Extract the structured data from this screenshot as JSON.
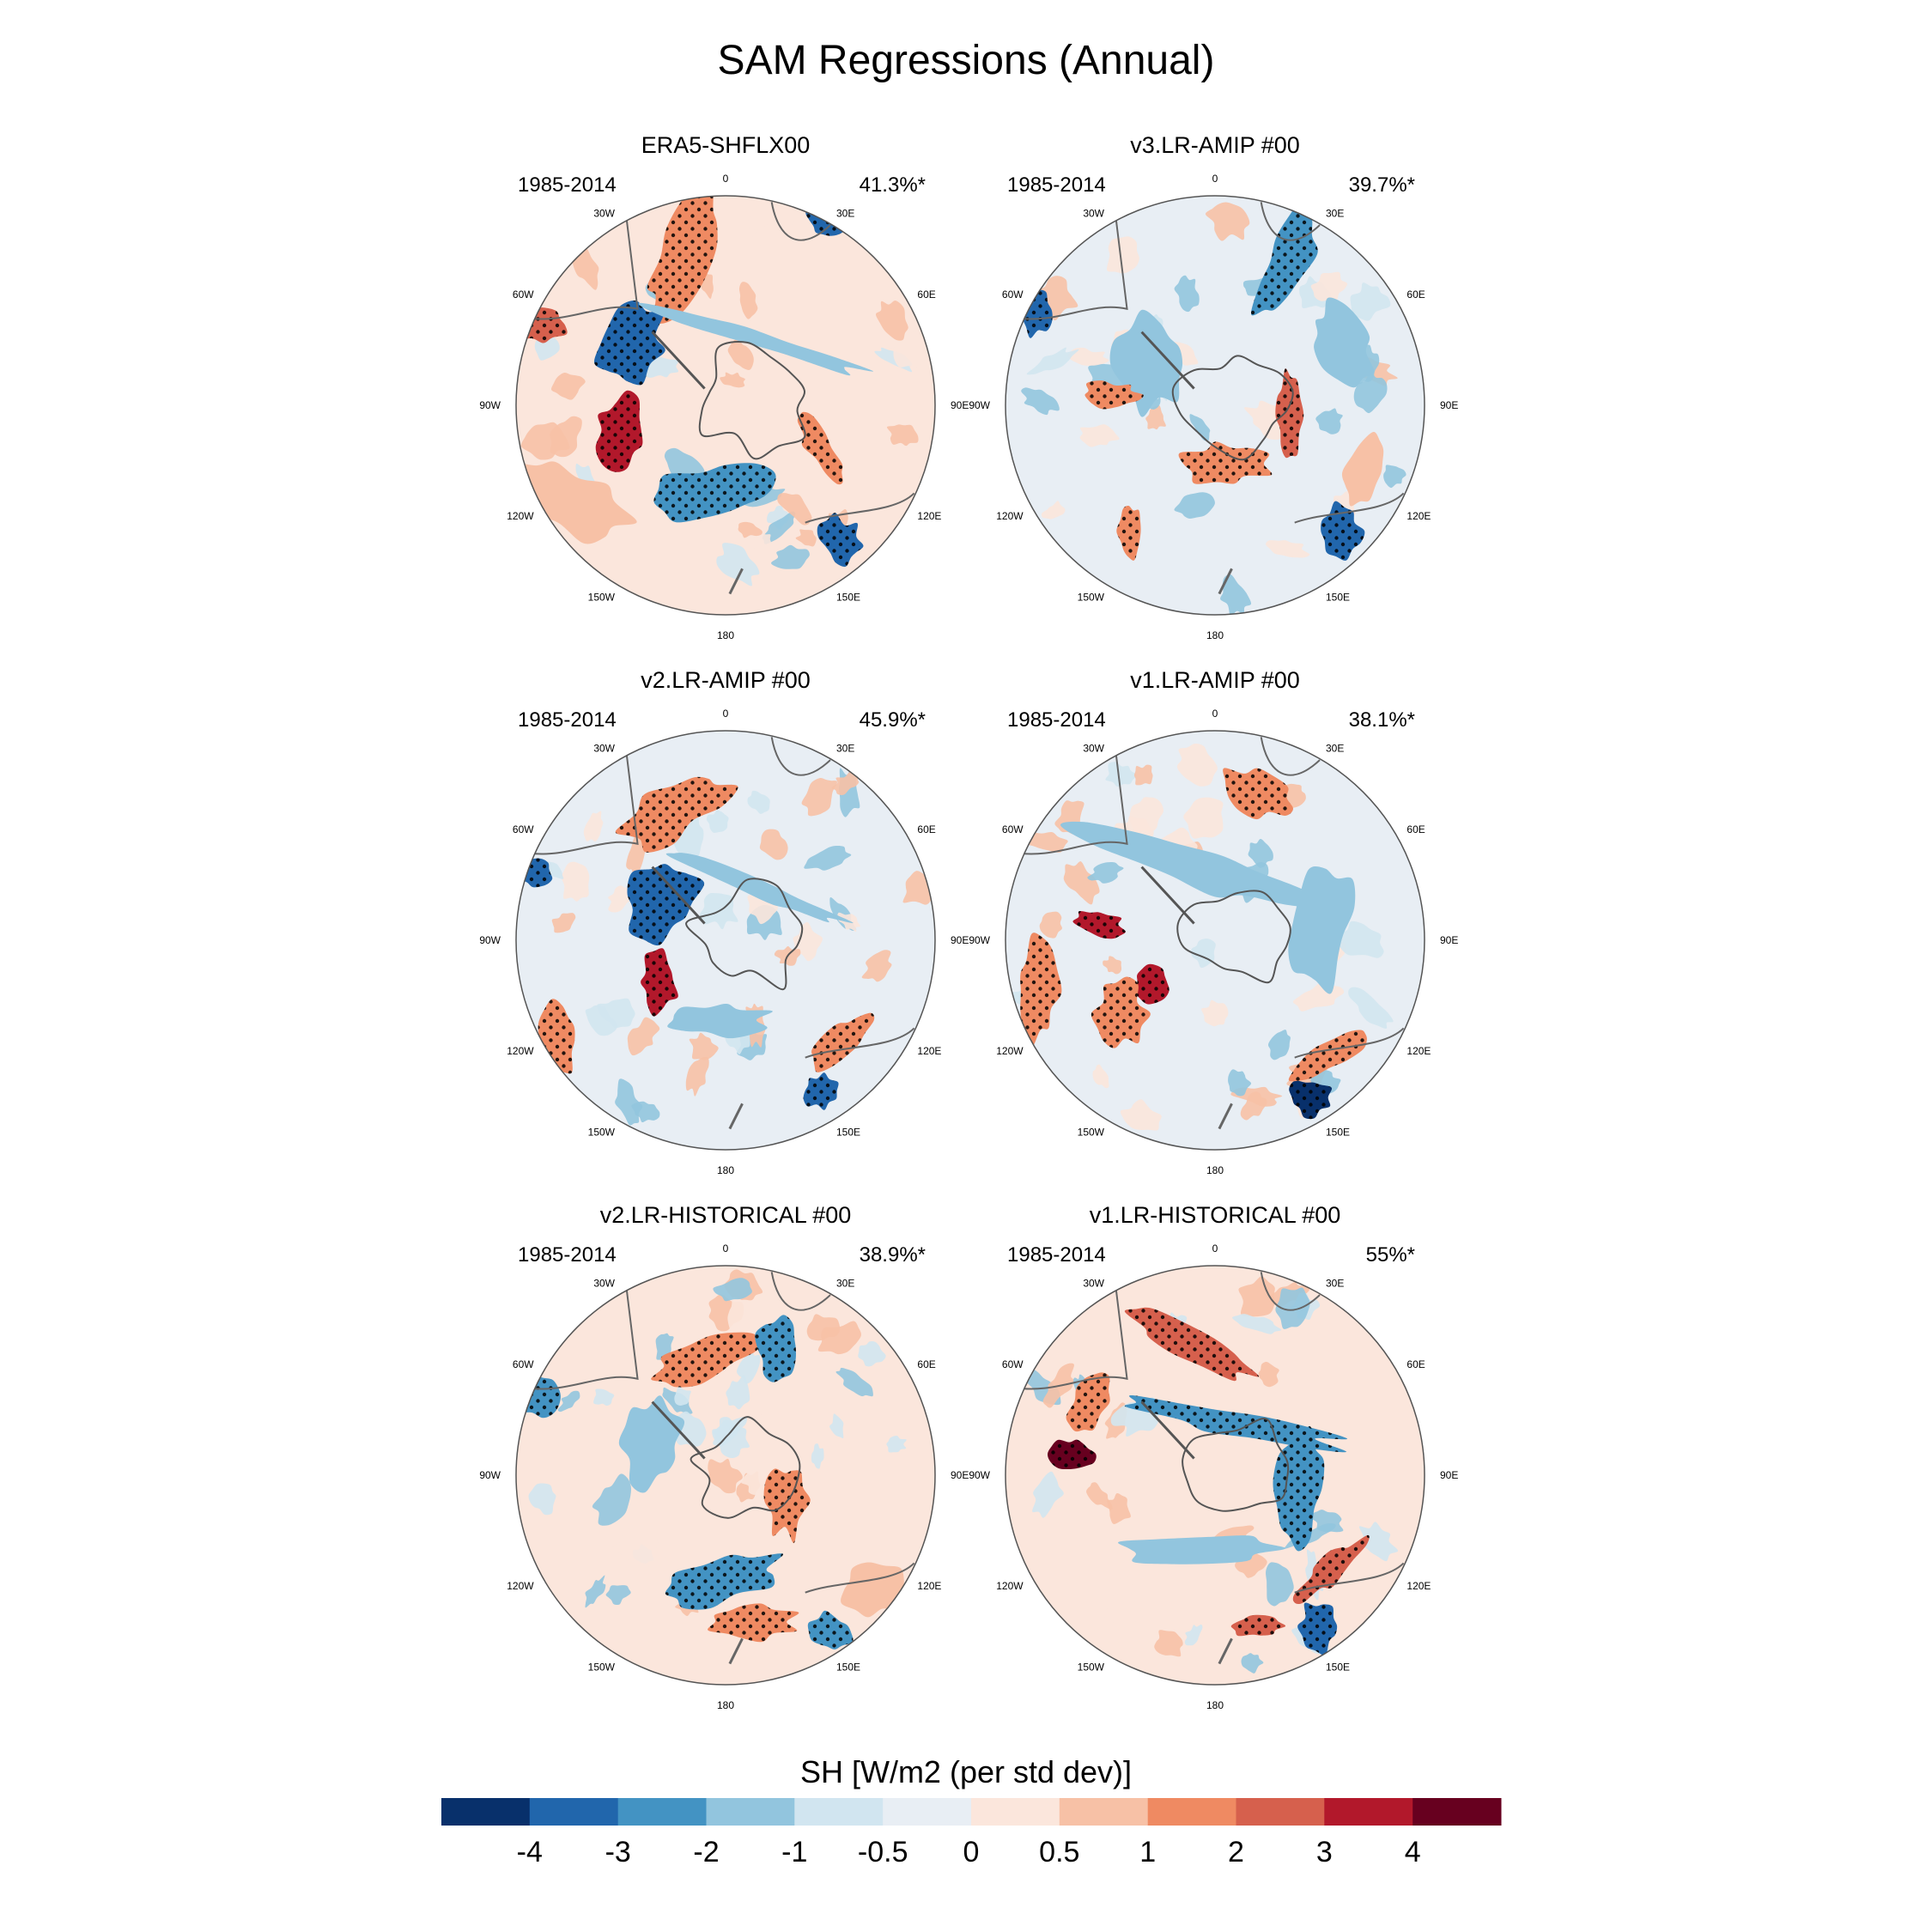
{
  "title": "SAM Regressions (Annual)",
  "panels": [
    {
      "name": "ERA5-SHFLX00",
      "period": "1985-2014",
      "variance": "41.3%*"
    },
    {
      "name": "v3.LR-AMIP  #00",
      "period": "1985-2014",
      "variance": "39.7%*"
    },
    {
      "name": "v2.LR-AMIP  #00",
      "period": "1985-2014",
      "variance": "45.9%*"
    },
    {
      "name": "v1.LR-AMIP  #00",
      "period": "1985-2014",
      "variance": "38.1%*"
    },
    {
      "name": "v2.LR-HISTORICAL  #00",
      "period": "1985-2014",
      "variance": "38.9%*"
    },
    {
      "name": "v1.LR-HISTORICAL  #00",
      "period": "1985-2014",
      "variance": "55%*"
    }
  ],
  "longitude_labels": [
    "0",
    "30E",
    "60E",
    "90E",
    "120E",
    "150E",
    "180",
    "150W",
    "120W",
    "90W",
    "60W",
    "30W"
  ],
  "colorbar": {
    "title": "SH [W/m2 (per std dev)]",
    "colors": [
      "#08306b",
      "#2166ac",
      "#4393c3",
      "#92c5de",
      "#d1e5f0",
      "#e8eef4",
      "#fbe6dc",
      "#f7c1a6",
      "#ef8a62",
      "#d6604d",
      "#b2182b",
      "#67001f"
    ],
    "tick_labels": [
      "-4",
      "-3",
      "-2",
      "-1",
      "-0.5",
      "0",
      "0.5",
      "1",
      "2",
      "3",
      "4"
    ]
  }
}
